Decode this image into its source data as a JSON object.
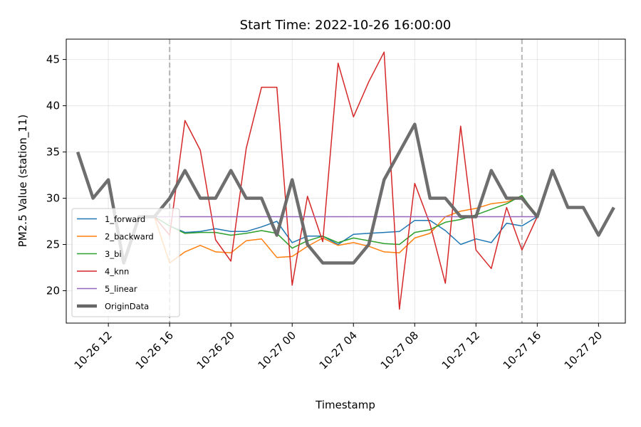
{
  "chart_data": {
    "type": "line",
    "title": "Start Time: 2022-10-26 16:00:00",
    "xlabel": "Timestamp",
    "ylabel": "PM2.5 Value (station_11)",
    "x_unit": "hour",
    "x_hours": [
      "2022-10-26 10:00",
      "2022-10-26 11:00",
      "2022-10-26 12:00",
      "2022-10-26 13:00",
      "2022-10-26 14:00",
      "2022-10-26 15:00",
      "2022-10-26 16:00",
      "2022-10-26 17:00",
      "2022-10-26 18:00",
      "2022-10-26 19:00",
      "2022-10-26 20:00",
      "2022-10-26 21:00",
      "2022-10-26 22:00",
      "2022-10-26 23:00",
      "2022-10-27 00:00",
      "2022-10-27 01:00",
      "2022-10-27 02:00",
      "2022-10-27 03:00",
      "2022-10-27 04:00",
      "2022-10-27 05:00",
      "2022-10-27 06:00",
      "2022-10-27 07:00",
      "2022-10-27 08:00",
      "2022-10-27 09:00",
      "2022-10-27 10:00",
      "2022-10-27 11:00",
      "2022-10-27 12:00",
      "2022-10-27 13:00",
      "2022-10-27 14:00",
      "2022-10-27 15:00",
      "2022-10-27 16:00",
      "2022-10-27 17:00",
      "2022-10-27 18:00",
      "2022-10-27 19:00",
      "2022-10-27 20:00",
      "2022-10-27 21:00"
    ],
    "xlim": [
      "2022-10-26 09:15",
      "2022-10-27 21:45"
    ],
    "ylim": [
      16.5,
      47.2
    ],
    "x_ticks": [
      {
        "x": "2022-10-26 12:00",
        "label": "10-26 12"
      },
      {
        "x": "2022-10-26 16:00",
        "label": "10-26 16"
      },
      {
        "x": "2022-10-26 20:00",
        "label": "10-26 20"
      },
      {
        "x": "2022-10-27 00:00",
        "label": "10-27 00"
      },
      {
        "x": "2022-10-27 04:00",
        "label": "10-27 04"
      },
      {
        "x": "2022-10-27 08:00",
        "label": "10-27 08"
      },
      {
        "x": "2022-10-27 12:00",
        "label": "10-27 12"
      },
      {
        "x": "2022-10-27 16:00",
        "label": "10-27 16"
      },
      {
        "x": "2022-10-27 20:00",
        "label": "10-27 20"
      }
    ],
    "y_ticks": [
      {
        "y": 20,
        "label": "20"
      },
      {
        "y": 25,
        "label": "25"
      },
      {
        "y": 30,
        "label": "30"
      },
      {
        "y": 35,
        "label": "35"
      },
      {
        "y": 40,
        "label": "40"
      },
      {
        "y": 45,
        "label": "45"
      }
    ],
    "vlines": [
      "2022-10-26 16:00",
      "2022-10-27 15:00"
    ],
    "grid": true,
    "legend_position": "lower-left",
    "series": [
      {
        "name": "1_forward",
        "color": "#1f77b4",
        "x": [
          "2022-10-26 15:00",
          "2022-10-26 16:00",
          "2022-10-26 17:00",
          "2022-10-26 18:00",
          "2022-10-26 19:00",
          "2022-10-26 20:00",
          "2022-10-26 21:00",
          "2022-10-26 22:00",
          "2022-10-26 23:00",
          "2022-10-27 00:00",
          "2022-10-27 01:00",
          "2022-10-27 02:00",
          "2022-10-27 03:00",
          "2022-10-27 04:00",
          "2022-10-27 05:00",
          "2022-10-27 06:00",
          "2022-10-27 07:00",
          "2022-10-27 08:00",
          "2022-10-27 09:00",
          "2022-10-27 10:00",
          "2022-10-27 11:00",
          "2022-10-27 12:00",
          "2022-10-27 13:00",
          "2022-10-27 14:00",
          "2022-10-27 15:00",
          "2022-10-27 16:00"
        ],
        "y": [
          28.0,
          27.0,
          26.3,
          26.4,
          26.7,
          26.4,
          26.4,
          26.9,
          27.5,
          25.2,
          25.9,
          25.9,
          25.0,
          26.1,
          26.2,
          26.3,
          26.4,
          27.6,
          27.6,
          26.5,
          25.0,
          25.6,
          25.2,
          27.3,
          27.0,
          28.0
        ]
      },
      {
        "name": "2_backward",
        "color": "#ff7f0e",
        "x": [
          "2022-10-26 15:00",
          "2022-10-26 16:00",
          "2022-10-26 17:00",
          "2022-10-26 18:00",
          "2022-10-26 19:00",
          "2022-10-26 20:00",
          "2022-10-26 21:00",
          "2022-10-26 22:00",
          "2022-10-26 23:00",
          "2022-10-27 00:00",
          "2022-10-27 01:00",
          "2022-10-27 02:00",
          "2022-10-27 03:00",
          "2022-10-27 04:00",
          "2022-10-27 05:00",
          "2022-10-27 06:00",
          "2022-10-27 07:00",
          "2022-10-27 08:00",
          "2022-10-27 09:00",
          "2022-10-27 10:00",
          "2022-10-27 11:00",
          "2022-10-27 12:00",
          "2022-10-27 13:00",
          "2022-10-27 14:00",
          "2022-10-27 15:00",
          "2022-10-27 16:00"
        ],
        "y": [
          28.0,
          23.0,
          24.2,
          24.9,
          24.2,
          24.1,
          25.4,
          25.6,
          23.6,
          23.7,
          24.8,
          25.7,
          24.9,
          25.2,
          24.8,
          24.2,
          24.1,
          25.7,
          26.2,
          28.0,
          28.6,
          28.9,
          29.4,
          29.6,
          30.2,
          28.0
        ]
      },
      {
        "name": "3_bi",
        "color": "#2ca02c",
        "x": [
          "2022-10-26 15:00",
          "2022-10-26 16:00",
          "2022-10-26 17:00",
          "2022-10-26 18:00",
          "2022-10-26 19:00",
          "2022-10-26 20:00",
          "2022-10-26 21:00",
          "2022-10-26 22:00",
          "2022-10-26 23:00",
          "2022-10-27 00:00",
          "2022-10-27 01:00",
          "2022-10-27 02:00",
          "2022-10-27 03:00",
          "2022-10-27 04:00",
          "2022-10-27 05:00",
          "2022-10-27 06:00",
          "2022-10-27 07:00",
          "2022-10-27 08:00",
          "2022-10-27 09:00",
          "2022-10-27 10:00",
          "2022-10-27 11:00",
          "2022-10-27 12:00",
          "2022-10-27 13:00",
          "2022-10-27 14:00",
          "2022-10-27 15:00",
          "2022-10-27 16:00"
        ],
        "y": [
          28.0,
          27.0,
          26.2,
          26.3,
          26.3,
          26.0,
          26.2,
          26.5,
          26.2,
          24.6,
          25.4,
          25.9,
          25.2,
          25.7,
          25.4,
          25.1,
          25.0,
          26.3,
          26.6,
          27.4,
          27.7,
          28.2,
          28.8,
          29.4,
          30.3,
          28.0
        ]
      },
      {
        "name": "4_knn",
        "color": "#d62728",
        "x": [
          "2022-10-26 15:00",
          "2022-10-26 16:00",
          "2022-10-26 17:00",
          "2022-10-26 18:00",
          "2022-10-26 19:00",
          "2022-10-26 20:00",
          "2022-10-26 21:00",
          "2022-10-26 22:00",
          "2022-10-26 23:00",
          "2022-10-27 00:00",
          "2022-10-27 01:00",
          "2022-10-27 02:00",
          "2022-10-27 03:00",
          "2022-10-27 04:00",
          "2022-10-27 05:00",
          "2022-10-27 06:00",
          "2022-10-27 07:00",
          "2022-10-27 08:00",
          "2022-10-27 09:00",
          "2022-10-27 10:00",
          "2022-10-27 11:00",
          "2022-10-27 12:00",
          "2022-10-27 13:00",
          "2022-10-27 14:00",
          "2022-10-27 15:00",
          "2022-10-27 16:00"
        ],
        "y": [
          28.0,
          26.0,
          38.4,
          35.2,
          25.5,
          23.2,
          35.4,
          42.0,
          42.0,
          20.6,
          30.2,
          25.3,
          44.6,
          38.8,
          42.6,
          45.8,
          18.0,
          31.6,
          27.2,
          20.8,
          37.8,
          24.4,
          22.4,
          29.0,
          24.4,
          28.0
        ]
      },
      {
        "name": "5_linear",
        "color": "#9467bd",
        "x": [
          "2022-10-26 15:00",
          "2022-10-27 16:00"
        ],
        "y": [
          28.0,
          28.0
        ]
      },
      {
        "name": "OriginData",
        "color": "#666666",
        "x": [
          "2022-10-26 10:00",
          "2022-10-26 11:00",
          "2022-10-26 12:00",
          "2022-10-26 13:00",
          "2022-10-26 14:00",
          "2022-10-26 15:00",
          "2022-10-26 16:00",
          "2022-10-26 17:00",
          "2022-10-26 18:00",
          "2022-10-26 19:00",
          "2022-10-26 20:00",
          "2022-10-26 21:00",
          "2022-10-26 22:00",
          "2022-10-26 23:00",
          "2022-10-27 00:00",
          "2022-10-27 01:00",
          "2022-10-27 02:00",
          "2022-10-27 03:00",
          "2022-10-27 04:00",
          "2022-10-27 05:00",
          "2022-10-27 06:00",
          "2022-10-27 07:00",
          "2022-10-27 08:00",
          "2022-10-27 09:00",
          "2022-10-27 10:00",
          "2022-10-27 11:00",
          "2022-10-27 12:00",
          "2022-10-27 13:00",
          "2022-10-27 14:00",
          "2022-10-27 15:00",
          "2022-10-27 16:00",
          "2022-10-27 17:00",
          "2022-10-27 18:00",
          "2022-10-27 19:00",
          "2022-10-27 20:00",
          "2022-10-27 21:00"
        ],
        "y": [
          35,
          30,
          32,
          23,
          28,
          28,
          30,
          33,
          30,
          30,
          33,
          30,
          30,
          26,
          32,
          25,
          23,
          23,
          23,
          25,
          32,
          35,
          38,
          30,
          30,
          28,
          28,
          33,
          30,
          30,
          28,
          33,
          29,
          29,
          26,
          29
        ]
      }
    ]
  }
}
